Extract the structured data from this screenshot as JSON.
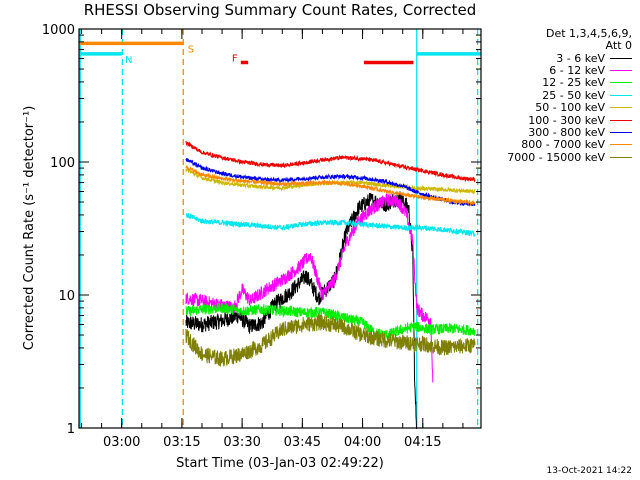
{
  "chart_data": {
    "type": "line",
    "title": "RHESSI Observing Summary Count Rates, Corrected",
    "xlabel": "Start Time (03-Jan-03 02:49:22)",
    "ylabel": "Corrected Count Rate (s⁻¹ detector⁻¹)",
    "y_scale": "log",
    "ylim": [
      1,
      1000
    ],
    "xlim": [
      "02:49:22",
      "04:29:30"
    ],
    "x_ticks": [
      "03:00",
      "03:15",
      "03:30",
      "03:45",
      "04:00",
      "04:15"
    ],
    "y_ticks": [
      "1",
      "10",
      "100",
      "1000"
    ],
    "legend_header": [
      "Det 1,3,4,5,6,9,",
      "Att 0"
    ],
    "legend_position": "right",
    "footer": "13-Oct-2021 14:22",
    "flags": [
      {
        "label": "N",
        "color": "#00e5ee",
        "segments": [
          [
            "02:49:22",
            "03:00:00"
          ],
          [
            "04:13:30",
            "04:29:30"
          ]
        ],
        "value": 650
      },
      {
        "label": "S",
        "color": "#ff8800",
        "segments": [
          [
            "02:49:22",
            "03:15:30"
          ]
        ],
        "value": 780
      },
      {
        "label": "F",
        "color": "#ee0000",
        "segments": [
          [
            "03:29:40",
            "03:31:30"
          ],
          [
            "04:00:20",
            "04:12:40"
          ]
        ],
        "value": 560
      }
    ],
    "vertical_lines": [
      {
        "time": "02:49:40",
        "color": "#00e5ee",
        "style": "solid"
      },
      {
        "time": "03:00:10",
        "color": "#00e5ee",
        "style": "dashed"
      },
      {
        "time": "03:15:20",
        "color": "#ff8800",
        "style": "dashed"
      },
      {
        "time": "04:13:30",
        "color": "#00e5ee",
        "style": "solid"
      },
      {
        "time": "04:28:40",
        "color": "#00e5ee",
        "style": "dashed"
      }
    ],
    "series": [
      {
        "name": "3 - 6 keV",
        "color": "#000000",
        "noise": 0.06,
        "points": [
          [
            "03:16:00",
            6.2
          ],
          [
            "03:20:00",
            6.0
          ],
          [
            "03:25:00",
            6.4
          ],
          [
            "03:29:00",
            7.0
          ],
          [
            "03:32:00",
            5.8
          ],
          [
            "03:35:00",
            6.2
          ],
          [
            "03:38:00",
            8.5
          ],
          [
            "03:42:00",
            10.5
          ],
          [
            "03:46:00",
            14
          ],
          [
            "03:49:00",
            9.5
          ],
          [
            "03:53:00",
            13
          ],
          [
            "03:56:00",
            30
          ],
          [
            "03:59:00",
            45
          ],
          [
            "04:02:00",
            52
          ],
          [
            "04:06:00",
            48
          ],
          [
            "04:09:00",
            55
          ],
          [
            "04:11:30",
            45
          ],
          [
            "04:12:30",
            20
          ],
          [
            "04:13:00",
            2.0
          ],
          [
            "04:13:30",
            1.0
          ]
        ]
      },
      {
        "name": "6 - 12 keV",
        "color": "#ff00ff",
        "noise": 0.05,
        "points": [
          [
            "03:16:00",
            9.5
          ],
          [
            "03:20:00",
            9.0
          ],
          [
            "03:24:00",
            8.5
          ],
          [
            "03:28:00",
            8.0
          ],
          [
            "03:30:00",
            11
          ],
          [
            "03:32:00",
            9
          ],
          [
            "03:36:00",
            11
          ],
          [
            "03:40:00",
            13
          ],
          [
            "03:44:00",
            16
          ],
          [
            "03:47:00",
            20
          ],
          [
            "03:50:00",
            10
          ],
          [
            "03:53:00",
            13
          ],
          [
            "03:56:00",
            25
          ],
          [
            "03:59:00",
            36
          ],
          [
            "04:02:00",
            44
          ],
          [
            "04:06:00",
            52
          ],
          [
            "04:09:00",
            50
          ],
          [
            "04:11:00",
            40
          ],
          [
            "04:12:30",
            25
          ],
          [
            "04:13:30",
            8
          ],
          [
            "04:15:00",
            7
          ],
          [
            "04:17:00",
            6.5
          ],
          [
            "04:17:30",
            2.2
          ]
        ]
      },
      {
        "name": "12 - 25 keV",
        "color": "#00ee00",
        "noise": 0.04,
        "points": [
          [
            "03:16:00",
            7.5
          ],
          [
            "03:20:00",
            7.8
          ],
          [
            "03:25:00",
            8.0
          ],
          [
            "03:30:00",
            7.6
          ],
          [
            "03:35:00",
            7.8
          ],
          [
            "03:40:00",
            7.6
          ],
          [
            "03:45:00",
            7.4
          ],
          [
            "03:50:00",
            7.4
          ],
          [
            "03:55:00",
            6.8
          ],
          [
            "04:00:00",
            6.2
          ],
          [
            "04:03:00",
            5.2
          ],
          [
            "04:06:00",
            5.0
          ],
          [
            "04:10:00",
            5.5
          ],
          [
            "04:13:00",
            5.8
          ],
          [
            "04:17:00",
            5.5
          ],
          [
            "04:22:00",
            5.6
          ],
          [
            "04:28:00",
            5.4
          ]
        ]
      },
      {
        "name": "25 - 50 keV",
        "color": "#00e5ee",
        "noise": 0.02,
        "points": [
          [
            "03:16:00",
            40
          ],
          [
            "03:20:00",
            36
          ],
          [
            "03:25:00",
            35
          ],
          [
            "03:30:00",
            34
          ],
          [
            "03:35:00",
            33
          ],
          [
            "03:40:00",
            32
          ],
          [
            "03:45:00",
            34
          ],
          [
            "03:50:00",
            35
          ],
          [
            "03:55:00",
            35
          ],
          [
            "04:00:00",
            34
          ],
          [
            "04:05:00",
            33
          ],
          [
            "04:10:00",
            32
          ],
          [
            "04:15:00",
            32
          ],
          [
            "04:20:00",
            31
          ],
          [
            "04:24:00",
            30
          ],
          [
            "04:28:00",
            29
          ]
        ]
      },
      {
        "name": "50 - 100 keV",
        "color": "#cdb800",
        "noise": 0.015,
        "points": [
          [
            "03:16:00",
            88
          ],
          [
            "03:20:00",
            76
          ],
          [
            "03:25:00",
            70
          ],
          [
            "03:30:00",
            67
          ],
          [
            "03:35:00",
            65
          ],
          [
            "03:40:00",
            64
          ],
          [
            "03:45:00",
            67
          ],
          [
            "03:50:00",
            69
          ],
          [
            "03:55:00",
            70
          ],
          [
            "04:00:00",
            70
          ],
          [
            "04:05:00",
            67
          ],
          [
            "04:10:00",
            65
          ],
          [
            "04:15:00",
            63
          ],
          [
            "04:20:00",
            62
          ],
          [
            "04:28:00",
            60
          ]
        ]
      },
      {
        "name": "100 - 300 keV",
        "color": "#ee0000",
        "noise": 0.015,
        "points": [
          [
            "03:16:00",
            140
          ],
          [
            "03:20:00",
            118
          ],
          [
            "03:25:00",
            108
          ],
          [
            "03:30:00",
            100
          ],
          [
            "03:35:00",
            96
          ],
          [
            "03:40:00",
            94
          ],
          [
            "03:45:00",
            98
          ],
          [
            "03:50:00",
            104
          ],
          [
            "03:55:00",
            108
          ],
          [
            "04:00:00",
            106
          ],
          [
            "04:05:00",
            100
          ],
          [
            "04:10:00",
            92
          ],
          [
            "04:15:00",
            86
          ],
          [
            "04:20:00",
            80
          ],
          [
            "04:24:00",
            76
          ],
          [
            "04:28:00",
            74
          ]
        ]
      },
      {
        "name": "300 - 800 keV",
        "color": "#0000ee",
        "noise": 0.015,
        "points": [
          [
            "03:16:00",
            105
          ],
          [
            "03:20:00",
            90
          ],
          [
            "03:25:00",
            82
          ],
          [
            "03:30:00",
            77
          ],
          [
            "03:35:00",
            74
          ],
          [
            "03:40:00",
            73
          ],
          [
            "03:45:00",
            75
          ],
          [
            "03:50:00",
            77
          ],
          [
            "03:55:00",
            78
          ],
          [
            "04:00:00",
            76
          ],
          [
            "04:05:00",
            72
          ],
          [
            "04:10:00",
            66
          ],
          [
            "04:13:00",
            60
          ],
          [
            "04:17:00",
            55
          ],
          [
            "04:22:00",
            50
          ],
          [
            "04:28:00",
            48
          ]
        ]
      },
      {
        "name": "800 - 7000 keV",
        "color": "#ff8800",
        "noise": 0.015,
        "points": [
          [
            "03:16:00",
            92
          ],
          [
            "03:20:00",
            80
          ],
          [
            "03:25:00",
            75
          ],
          [
            "03:30:00",
            72
          ],
          [
            "03:35:00",
            70
          ],
          [
            "03:40:00",
            68
          ],
          [
            "03:45:00",
            69
          ],
          [
            "03:50:00",
            70
          ],
          [
            "03:55:00",
            69
          ],
          [
            "04:00:00",
            66
          ],
          [
            "04:05:00",
            61
          ],
          [
            "04:10:00",
            57
          ],
          [
            "04:15:00",
            54
          ],
          [
            "04:20:00",
            52
          ],
          [
            "04:28:00",
            49
          ]
        ]
      },
      {
        "name": "7000 - 15000 keV",
        "color": "#7f7f00",
        "noise": 0.06,
        "points": [
          [
            "03:16:00",
            5.0
          ],
          [
            "03:18:00",
            4.2
          ],
          [
            "03:20:00",
            3.6
          ],
          [
            "03:25:00",
            3.3
          ],
          [
            "03:30:00",
            3.6
          ],
          [
            "03:35:00",
            4.2
          ],
          [
            "03:40:00",
            5.5
          ],
          [
            "03:45:00",
            6.0
          ],
          [
            "03:50:00",
            6.2
          ],
          [
            "03:55:00",
            5.8
          ],
          [
            "04:00:00",
            5.0
          ],
          [
            "04:05:00",
            4.6
          ],
          [
            "04:10:00",
            4.4
          ],
          [
            "04:15:00",
            4.3
          ],
          [
            "04:20:00",
            4.0
          ],
          [
            "04:28:00",
            4.2
          ]
        ]
      }
    ]
  }
}
